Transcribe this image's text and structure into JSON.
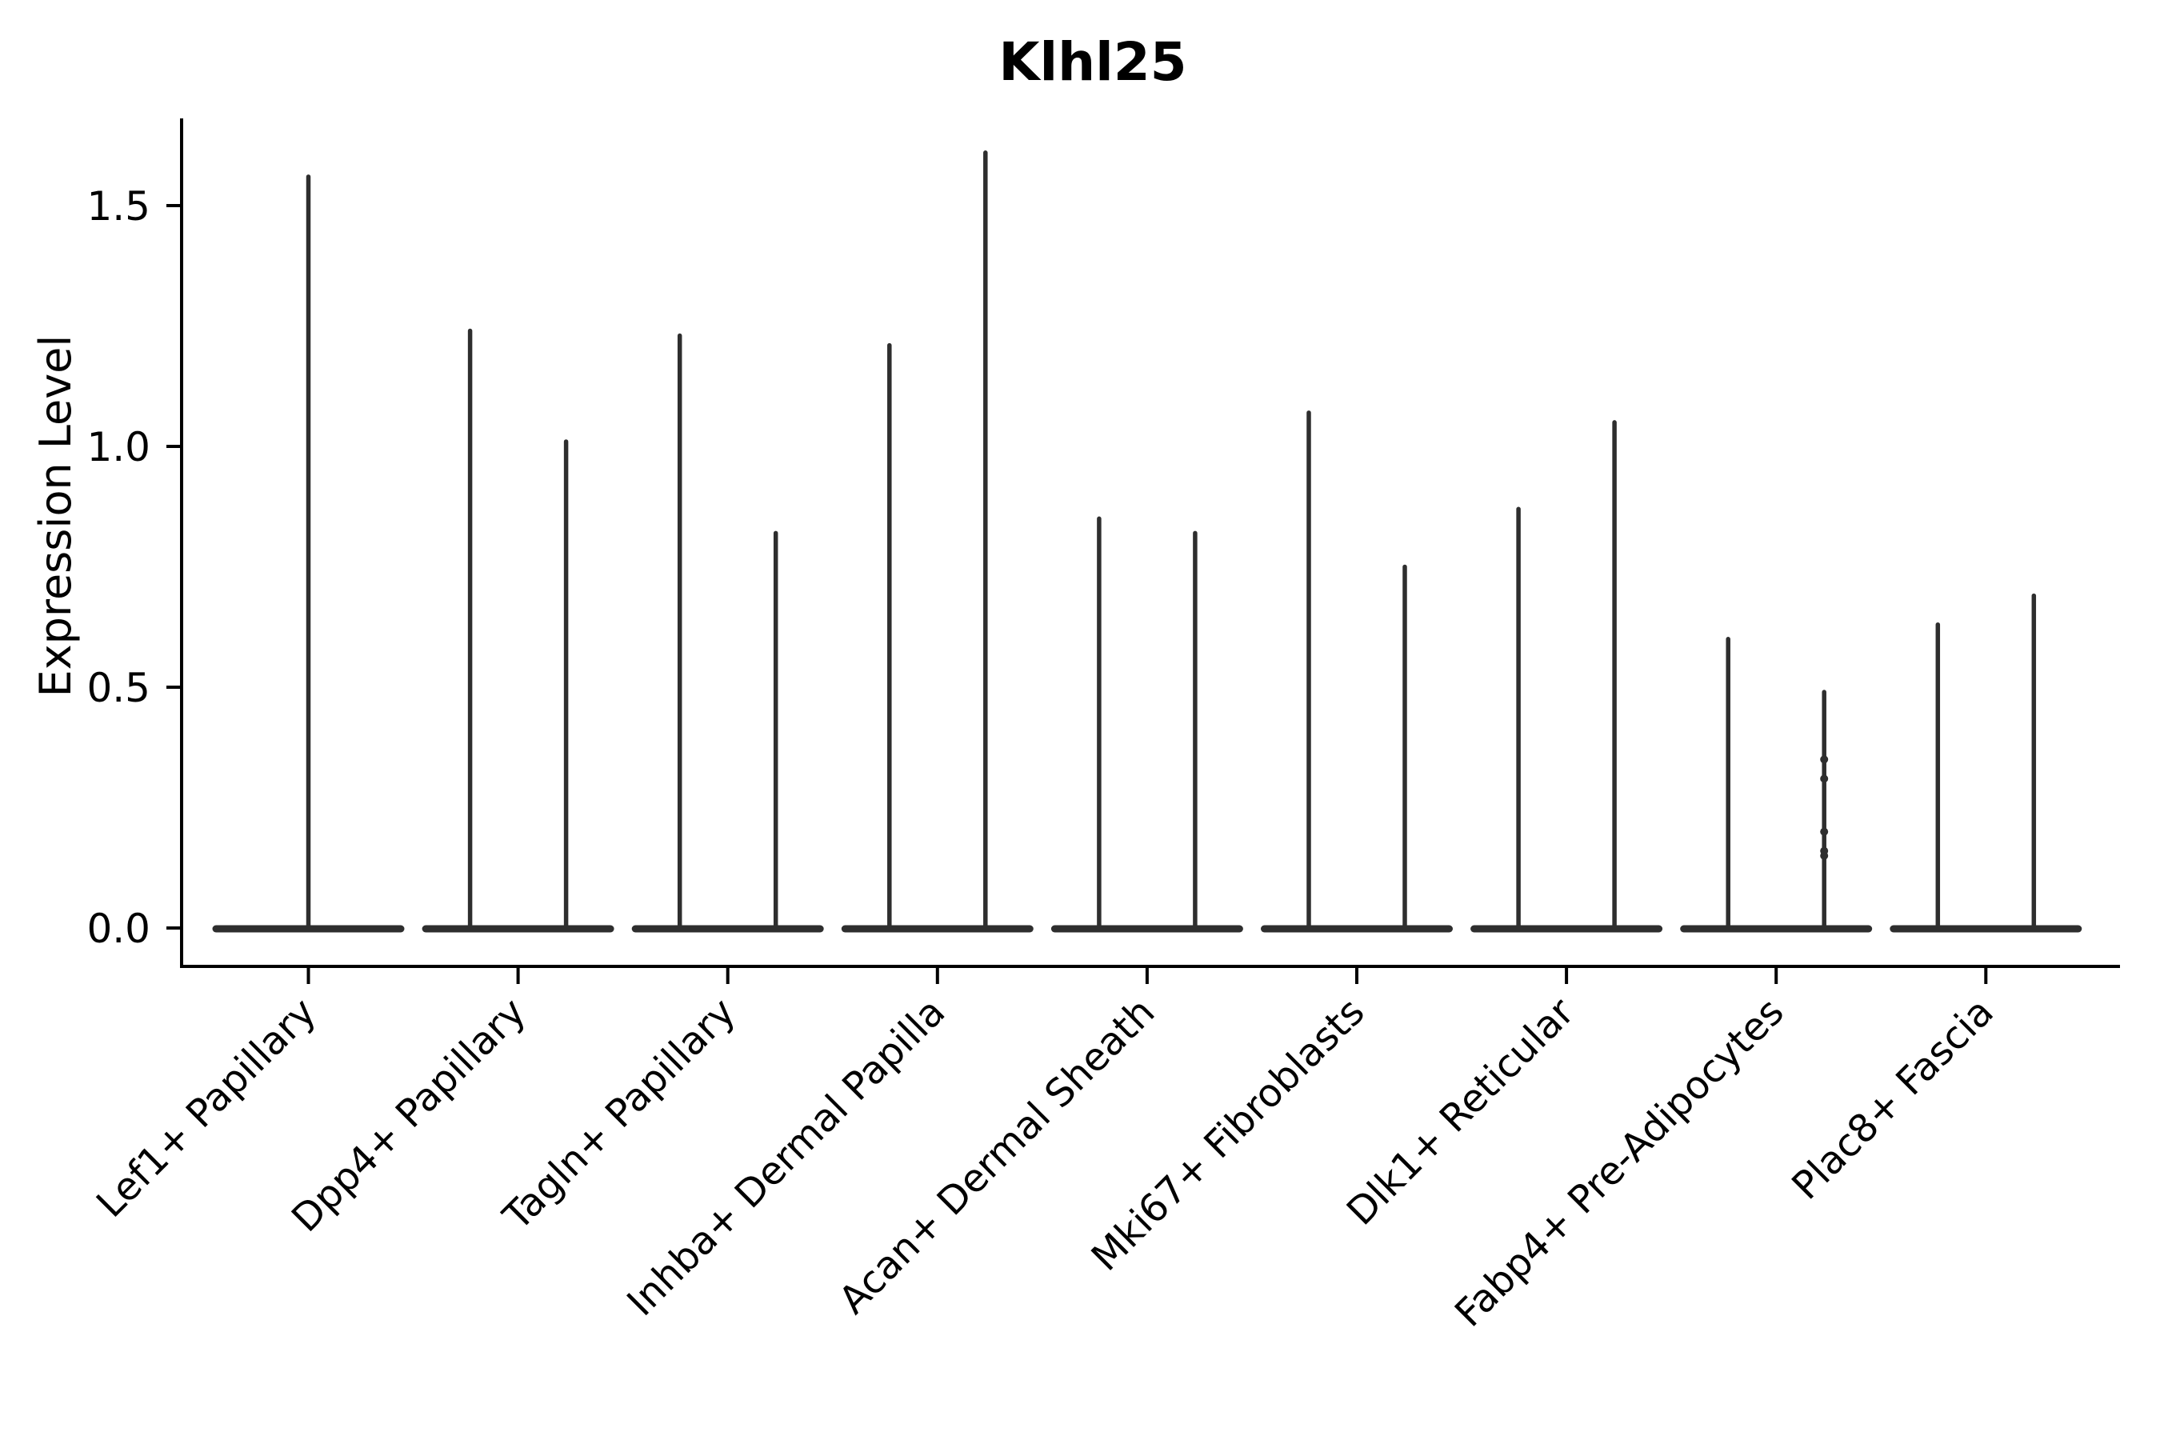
{
  "figure": {
    "title": "Klhl25"
  },
  "chart_data": {
    "type": "violin",
    "title": "Klhl25",
    "xlabel": "",
    "ylabel": "Expression Level",
    "ytick_labels": [
      "0.0",
      "0.5",
      "1.0",
      "1.5"
    ],
    "ylim": [
      -0.08,
      1.72
    ],
    "grid": false,
    "legend": "none",
    "categories": [
      "Lef1+ Papillary",
      "Dpp4+ Papillary",
      "Tagln+ Papillary",
      "Inhba+ Dermal Papilla",
      "Acan+ Dermal Sheath",
      "Mki67+ Fibroblasts",
      "Dlk1+ Reticular",
      "Fabp4+ Pre-Adipocytes",
      "Plac8+ Fascia"
    ],
    "violins_max_per_category": [
      [
        1.56
      ],
      [
        1.24,
        1.01
      ],
      [
        1.23,
        0.82
      ],
      [
        1.21,
        1.61
      ],
      [
        0.85,
        0.82
      ],
      [
        1.07,
        0.75
      ],
      [
        0.87,
        1.05
      ],
      [
        0.6,
        0.49
      ],
      [
        0.63,
        0.69
      ]
    ],
    "violin_floor_value": 0.0,
    "jitter_points": [
      {
        "category_index": 7,
        "violin_index": 1,
        "values": [
          0.35,
          0.31,
          0.2,
          0.16,
          0.15
        ]
      }
    ],
    "colors": {
      "violin": "#2e2e2e",
      "axis": "#000000",
      "text": "#000000",
      "background": "#ffffff"
    }
  }
}
